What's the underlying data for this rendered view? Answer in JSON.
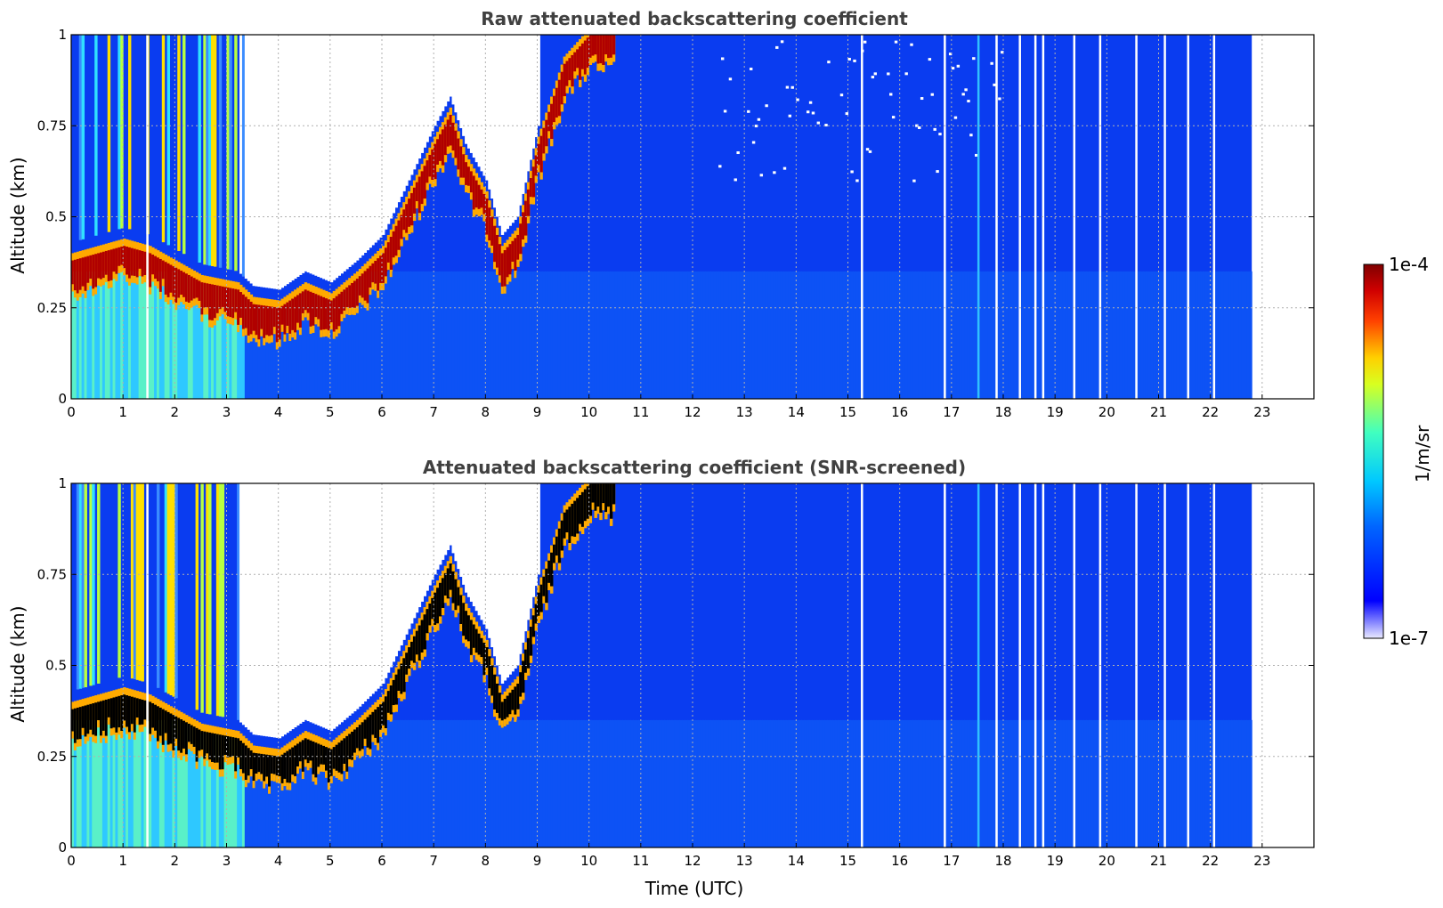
{
  "chart_data": [
    {
      "type": "heatmap",
      "title": "Raw attenuated backscattering coefficient",
      "xlabel": "",
      "ylabel": "Altitude (km)",
      "xlim": [
        0,
        24
      ],
      "ylim": [
        0,
        1
      ],
      "x_ticks": [
        "0",
        "1",
        "2",
        "3",
        "4",
        "5",
        "6",
        "7",
        "8",
        "9",
        "10",
        "11",
        "12",
        "13",
        "14",
        "15",
        "16",
        "17",
        "18",
        "19",
        "20",
        "21",
        "22",
        "23"
      ],
      "y_ticks": [
        "0",
        "0.25",
        "0.5",
        "0.75",
        "1"
      ],
      "grid": true,
      "data_end_hour": 22.8,
      "screened": false,
      "boundary_layer_top_km": {
        "hours": [
          0,
          1,
          1.5,
          2.5,
          3.2,
          3.5,
          4,
          4.5,
          5,
          5.5,
          6,
          6.5,
          7,
          7.3,
          7.6,
          8,
          8.3,
          8.6,
          9,
          9.5,
          10,
          10.5
        ],
        "values": [
          0.38,
          0.42,
          0.4,
          0.32,
          0.3,
          0.26,
          0.25,
          0.3,
          0.27,
          0.33,
          0.4,
          0.55,
          0.7,
          0.78,
          0.65,
          0.55,
          0.4,
          0.45,
          0.7,
          0.92,
          1.0,
          1.0
        ]
      }
    },
    {
      "type": "heatmap",
      "title": "Attenuated backscattering coefficient (SNR-screened)",
      "xlabel": "Time (UTC)",
      "ylabel": "Altitude (km)",
      "xlim": [
        0,
        24
      ],
      "ylim": [
        0,
        1
      ],
      "x_ticks": [
        "0",
        "1",
        "2",
        "3",
        "4",
        "5",
        "6",
        "7",
        "8",
        "9",
        "10",
        "11",
        "12",
        "13",
        "14",
        "15",
        "16",
        "17",
        "18",
        "19",
        "20",
        "21",
        "22",
        "23"
      ],
      "y_ticks": [
        "0",
        "0.25",
        "0.5",
        "0.75",
        "1"
      ],
      "grid": true,
      "data_end_hour": 22.8,
      "screened": true,
      "boundary_layer_top_km": {
        "hours": [
          0,
          1,
          1.5,
          2.5,
          3.2,
          3.5,
          4,
          4.5,
          5,
          5.5,
          6,
          6.5,
          7,
          7.3,
          7.6,
          8,
          8.3,
          8.6,
          9,
          9.5,
          10,
          10.5
        ],
        "values": [
          0.38,
          0.42,
          0.4,
          0.32,
          0.3,
          0.26,
          0.25,
          0.3,
          0.27,
          0.33,
          0.4,
          0.55,
          0.7,
          0.78,
          0.65,
          0.55,
          0.4,
          0.45,
          0.7,
          0.92,
          1.0,
          1.0
        ]
      }
    }
  ],
  "colorbar": {
    "label": "1/m/sr",
    "max_label": "1e-4",
    "min_label": "1e-7",
    "colormap": "jet",
    "colors": [
      "#e8e8ff",
      "#0000ff",
      "#00bfff",
      "#00ffcc",
      "#ffff00",
      "#ff8000",
      "#ff0000",
      "#800000"
    ]
  }
}
